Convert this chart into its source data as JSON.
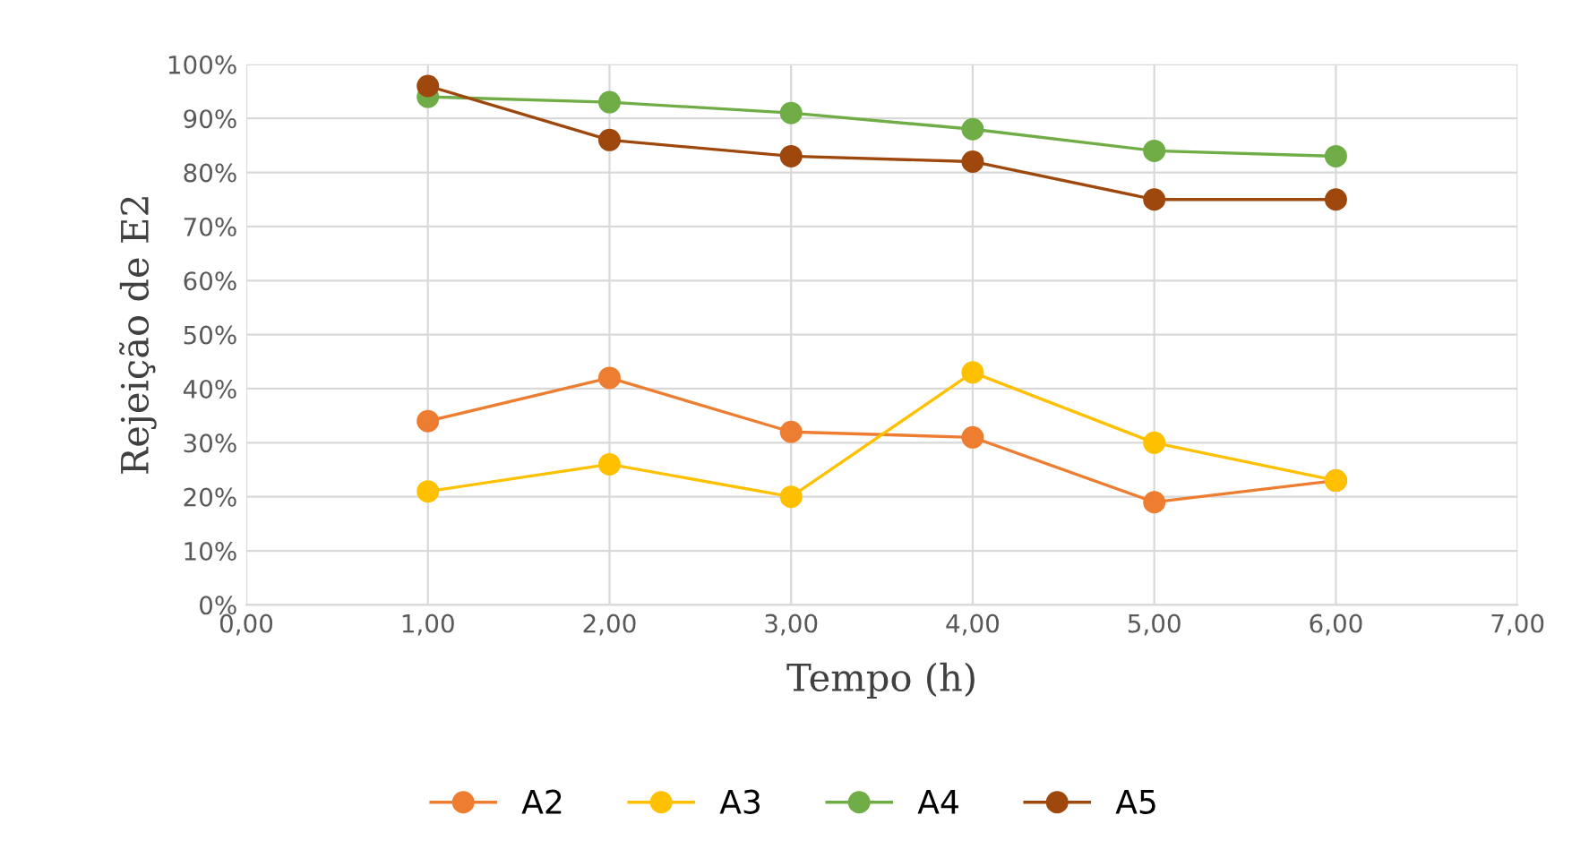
{
  "chart_data": {
    "type": "line",
    "xlabel": "Tempo (h)",
    "ylabel": "Rejeição de E2",
    "x": [
      1,
      2,
      3,
      4,
      5,
      6
    ],
    "series": [
      {
        "name": "A2",
        "color": "#ed7d31",
        "values": [
          34,
          42,
          32,
          31,
          19,
          23
        ]
      },
      {
        "name": "A3",
        "color": "#ffc000",
        "values": [
          21,
          26,
          20,
          43,
          30,
          23
        ]
      },
      {
        "name": "A4",
        "color": "#70ad47",
        "values": [
          94,
          93,
          91,
          88,
          84,
          83
        ]
      },
      {
        "name": "A5",
        "color": "#9e480e",
        "values": [
          96,
          86,
          83,
          82,
          75,
          75
        ]
      }
    ],
    "xlim": [
      0,
      7
    ],
    "xticks": [
      {
        "value": 0,
        "label": "0,00"
      },
      {
        "value": 1,
        "label": "1,00"
      },
      {
        "value": 2,
        "label": "2,00"
      },
      {
        "value": 3,
        "label": "3,00"
      },
      {
        "value": 4,
        "label": "4,00"
      },
      {
        "value": 5,
        "label": "5,00"
      },
      {
        "value": 6,
        "label": "6,00"
      },
      {
        "value": 7,
        "label": "7,00"
      }
    ],
    "ylim": [
      0,
      100
    ],
    "yticks": [
      {
        "value": 0,
        "label": "0%"
      },
      {
        "value": 10,
        "label": "10%"
      },
      {
        "value": 20,
        "label": "20%"
      },
      {
        "value": 30,
        "label": "30%"
      },
      {
        "value": 40,
        "label": "40%"
      },
      {
        "value": 50,
        "label": "50%"
      },
      {
        "value": 60,
        "label": "60%"
      },
      {
        "value": 70,
        "label": "70%"
      },
      {
        "value": 80,
        "label": "80%"
      },
      {
        "value": 90,
        "label": "90%"
      },
      {
        "value": 100,
        "label": "100%"
      }
    ],
    "grid": true,
    "legend": "bottom",
    "marker": "circle",
    "line_style": "solid"
  }
}
